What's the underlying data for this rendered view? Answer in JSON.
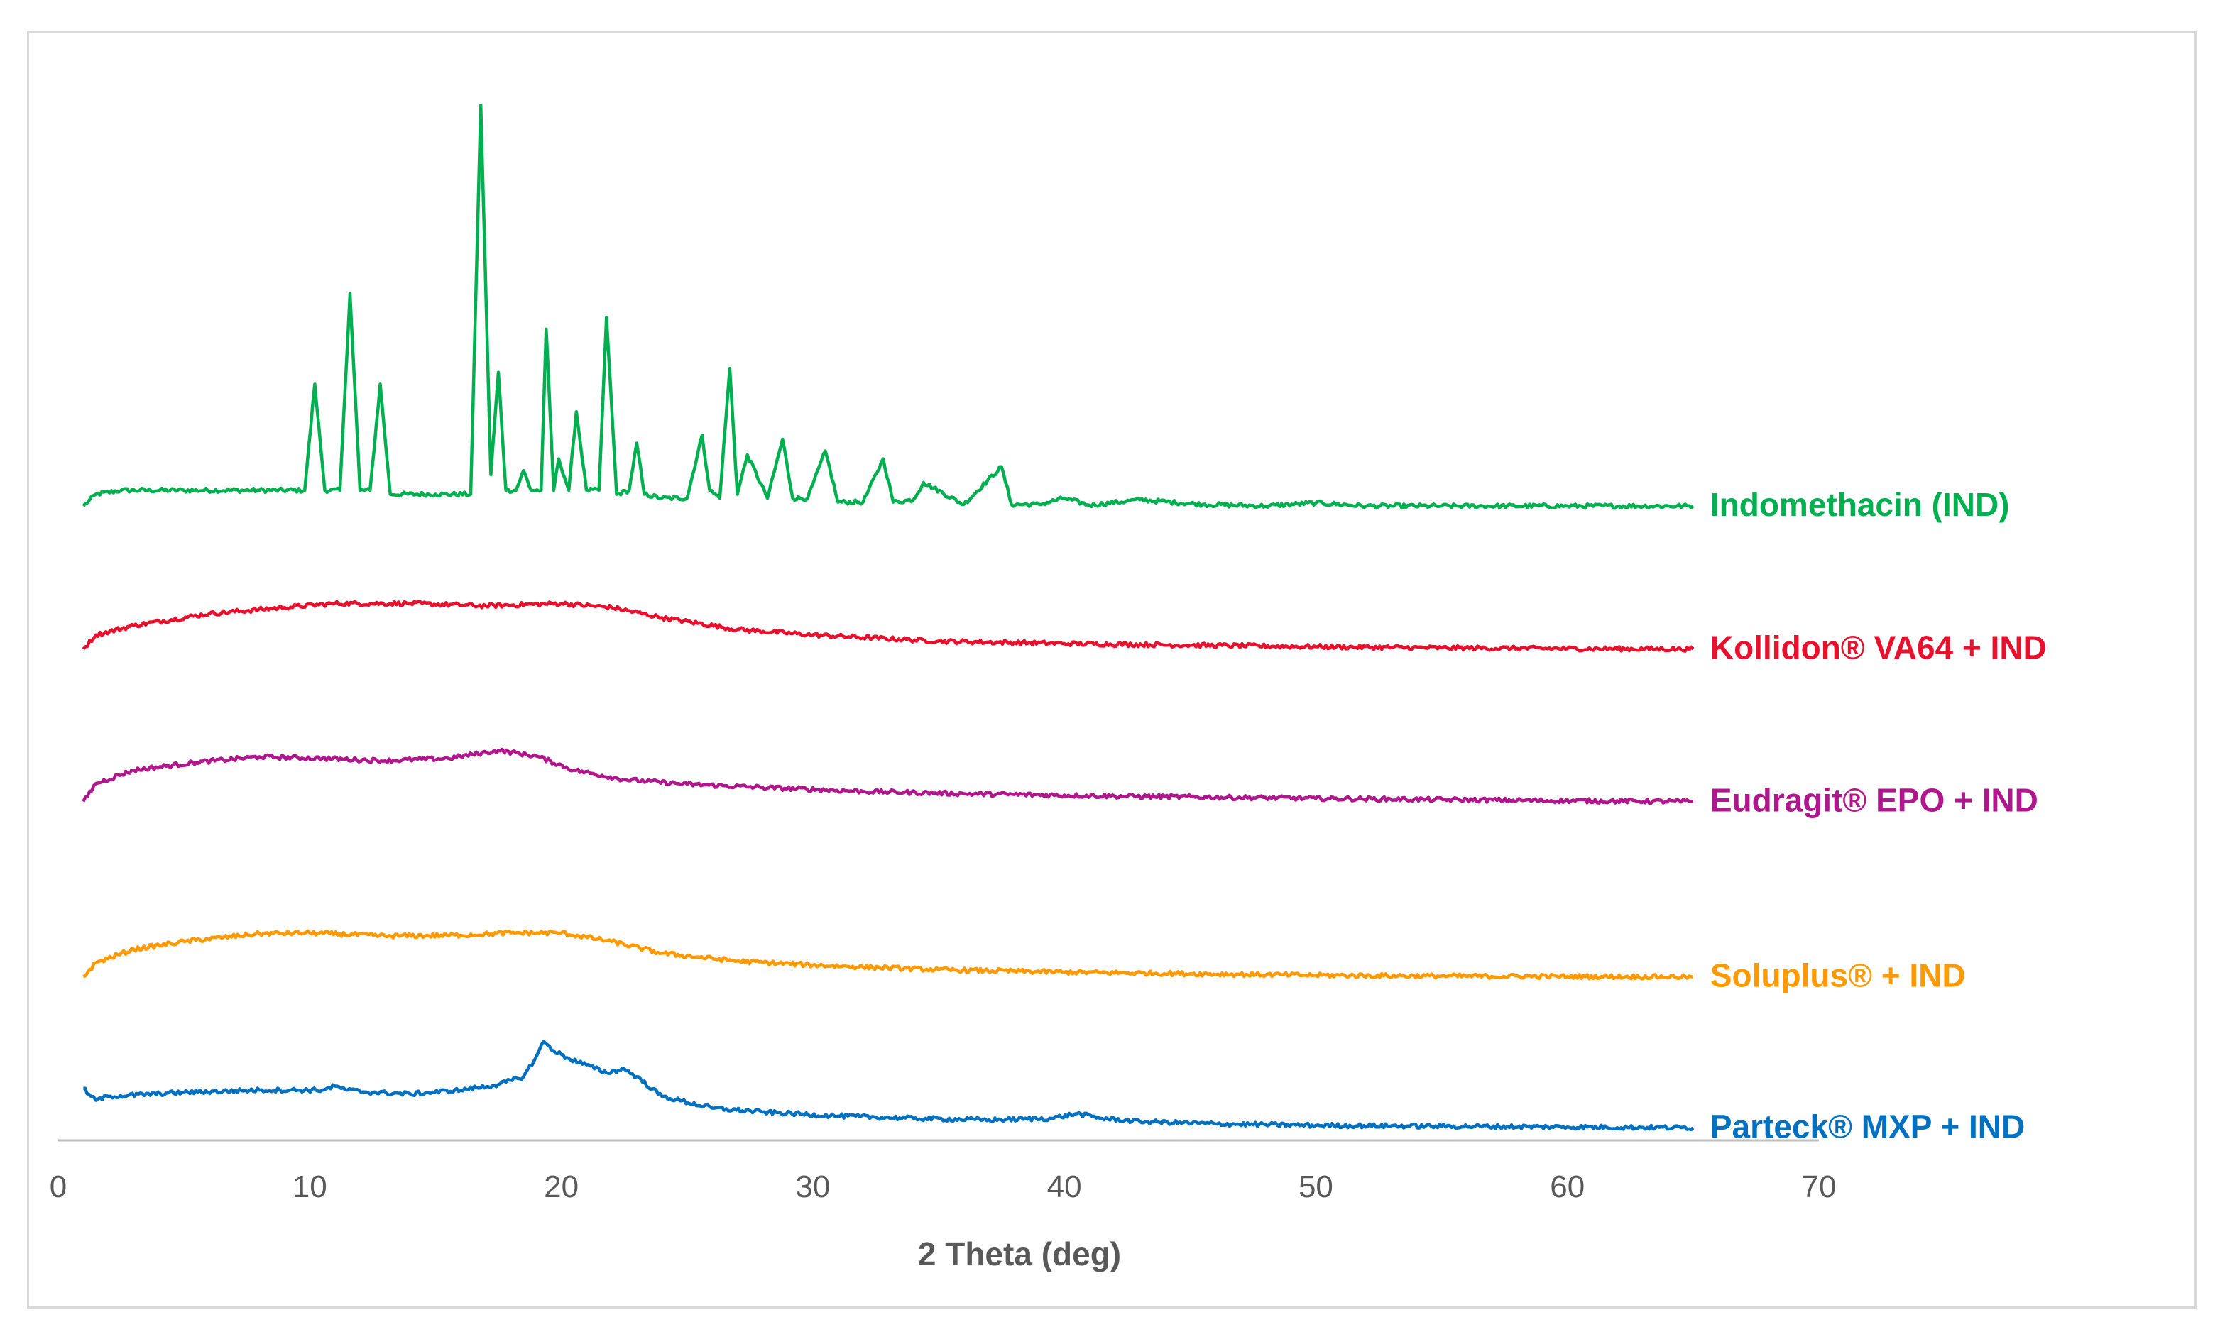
{
  "chart_data": {
    "type": "line",
    "title": "",
    "xlabel": "2 Theta (deg)",
    "ylabel": "",
    "xlim": [
      0,
      70
    ],
    "ylim": [
      0,
      100
    ],
    "xticks": [
      "0",
      "10",
      "20",
      "30",
      "40",
      "50",
      "60",
      "70"
    ],
    "grid": false,
    "y_axis_shown": false,
    "legend": "inline labels at right end of each trace",
    "series": [
      {
        "name": "Indomethacin (IND)",
        "label": "Indomethacin (IND)",
        "color": "#00B050",
        "offset": 60.7,
        "x": [
          1.0,
          1.5,
          2.5,
          5.0,
          8.0,
          9.8,
          10.2,
          10.6,
          11.2,
          11.6,
          12.0,
          12.4,
          12.8,
          13.2,
          15.0,
          16.4,
          16.8,
          17.2,
          17.5,
          17.8,
          18.2,
          18.5,
          18.8,
          19.2,
          19.4,
          19.7,
          19.9,
          20.3,
          20.6,
          21.0,
          21.5,
          21.8,
          22.2,
          22.7,
          23.0,
          23.3,
          24.0,
          25.0,
          25.6,
          25.9,
          26.3,
          26.7,
          27.0,
          27.4,
          28.2,
          28.8,
          29.2,
          29.8,
          30.5,
          31.0,
          32.0,
          32.8,
          33.2,
          34.0,
          34.4,
          36.0,
          37.5,
          37.9,
          39.0,
          40.0,
          41.0,
          43.0,
          45.5,
          48.0,
          50.0,
          52.0,
          55.0,
          60.0,
          65.0
        ],
        "y": [
          0.0,
          1.5,
          2.0,
          2.0,
          2.0,
          2.0,
          15.5,
          2.0,
          2.0,
          27.0,
          2.0,
          2.0,
          15.5,
          1.5,
          1.5,
          1.5,
          51.0,
          4.0,
          17.0,
          2.0,
          2.0,
          4.5,
          2.0,
          2.0,
          22.5,
          2.0,
          6.0,
          2.0,
          12.0,
          2.0,
          2.0,
          24.0,
          1.5,
          2.0,
          8.0,
          1.5,
          1.0,
          1.0,
          9.0,
          2.0,
          1.0,
          17.5,
          1.5,
          6.5,
          1.0,
          8.5,
          1.0,
          1.0,
          7.0,
          0.5,
          0.5,
          6.0,
          0.5,
          0.8,
          3.0,
          0.2,
          5.0,
          0.2,
          0.2,
          1.0,
          0.1,
          0.8,
          0.2,
          0.0,
          0.4,
          0.0,
          0.0,
          0.0,
          0.0
        ]
      },
      {
        "name": "Kollidon® VA64 + IND",
        "label": "Kollidon® VA64 + IND",
        "color": "#E8112D",
        "offset": 42.5,
        "x": [
          1.0,
          1.5,
          3.0,
          6.0,
          9.0,
          11.0,
          14.0,
          17.0,
          20.0,
          22.0,
          24.0,
          27.0,
          30.0,
          35.0,
          40.0,
          45.0,
          50.0,
          55.0,
          60.0,
          65.0
        ],
        "y": [
          0.0,
          1.8,
          3.0,
          4.5,
          5.3,
          5.8,
          5.8,
          5.5,
          5.8,
          5.3,
          4.0,
          2.5,
          1.8,
          1.0,
          0.7,
          0.5,
          0.3,
          0.15,
          0.05,
          0.0
        ]
      },
      {
        "name": "Eudragit® EPO + IND",
        "label": "Eudragit® EPO + IND",
        "color": "#B0178C",
        "offset": 23.1,
        "x": [
          1.0,
          1.5,
          3.0,
          5.5,
          8.0,
          10.5,
          13.0,
          15.5,
          17.5,
          19.0,
          20.5,
          22.5,
          25.0,
          28.0,
          32.0,
          36.0,
          42.0,
          50.0,
          58.0,
          65.0
        ],
        "y": [
          0.0,
          2.3,
          4.0,
          5.0,
          5.7,
          5.5,
          5.2,
          5.5,
          6.5,
          5.8,
          4.0,
          2.8,
          2.2,
          1.8,
          1.3,
          1.0,
          0.7,
          0.4,
          0.15,
          0.0
        ]
      },
      {
        "name": "Soluplus® + IND",
        "label": "Soluplus® + IND",
        "color": "#FF9900",
        "offset": 0.8,
        "x": [
          1.0,
          1.5,
          3.0,
          5.0,
          8.0,
          10.0,
          13.0,
          16.0,
          18.0,
          20.0,
          22.0,
          24.0,
          27.0,
          30.0,
          35.0,
          40.0,
          45.0,
          50.0,
          55.0,
          60.0,
          65.0
        ],
        "y": [
          0.0,
          1.8,
          3.5,
          4.5,
          5.5,
          5.6,
          5.2,
          5.3,
          5.6,
          5.6,
          4.5,
          3.0,
          2.0,
          1.5,
          0.9,
          0.6,
          0.4,
          0.2,
          0.1,
          0.05,
          0.0
        ]
      },
      {
        "name": "Parteck® MXP + IND",
        "label": "Parteck® MXP + IND",
        "color": "#0070C0",
        "offset": -18.4,
        "x": [
          1.0,
          1.3,
          1.5,
          2.0,
          5.0,
          8.0,
          10.5,
          11.0,
          11.5,
          12.5,
          14.0,
          16.0,
          17.5,
          18.5,
          19.0,
          19.3,
          19.7,
          20.3,
          21.0,
          21.8,
          22.5,
          23.0,
          24.0,
          26.0,
          28.0,
          31.0,
          34.0,
          37.0,
          39.5,
          40.5,
          41.5,
          43.0,
          46.0,
          50.0,
          55.0,
          60.0,
          65.0
        ],
        "y": [
          5.0,
          4.0,
          3.5,
          4.0,
          4.5,
          4.8,
          4.8,
          5.3,
          4.8,
          4.5,
          4.3,
          4.8,
          5.5,
          6.5,
          9.0,
          11.0,
          9.8,
          8.8,
          8.0,
          7.0,
          7.5,
          6.5,
          4.0,
          2.5,
          2.0,
          1.5,
          1.2,
          1.0,
          1.2,
          1.8,
          1.2,
          0.8,
          0.5,
          0.3,
          0.2,
          0.1,
          0.0
        ]
      }
    ]
  }
}
